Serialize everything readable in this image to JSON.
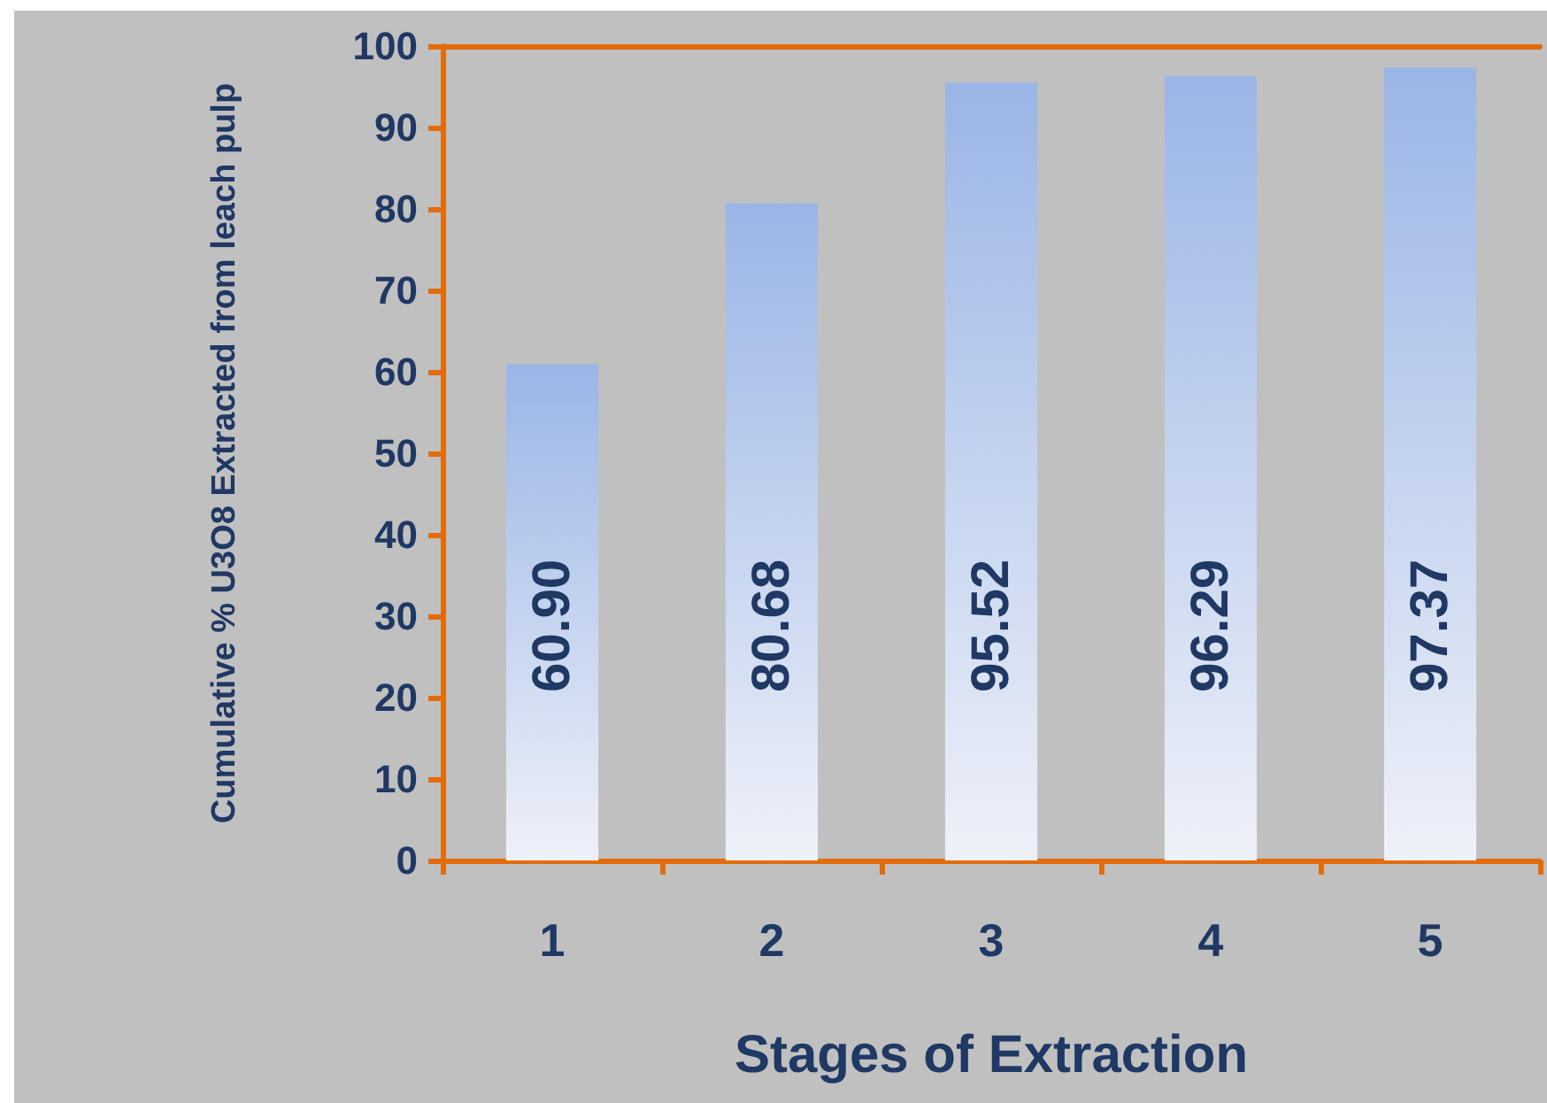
{
  "chart_data": {
    "type": "bar",
    "xlabel": "Stages of Extraction",
    "ylabel": "Cumulative % U3O8 Extracted from leach pulp",
    "categories": [
      "1",
      "2",
      "3",
      "4",
      "5"
    ],
    "values": [
      60.9,
      80.68,
      95.52,
      96.29,
      97.37
    ],
    "value_labels": [
      "60.90",
      "80.68",
      "95.52",
      "96.29",
      "97.37"
    ],
    "color": "#9ab5e6",
    "ylim": [
      0,
      100
    ],
    "yticks": [
      0,
      10,
      20,
      30,
      40,
      50,
      60,
      70,
      80,
      90,
      100
    ],
    "grid": false
  }
}
